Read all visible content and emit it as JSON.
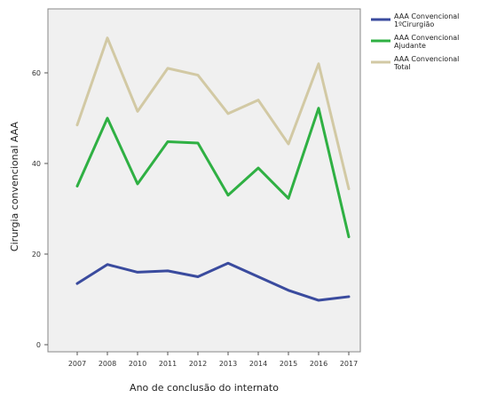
{
  "chart_data": {
    "type": "line",
    "x": [
      "2007",
      "2008",
      "2010",
      "2011",
      "2012",
      "2013",
      "2014",
      "2015",
      "2016",
      "2017"
    ],
    "xlabel": "Ano de conclusão do internato",
    "ylabel": "Cirurgia convencional AAA",
    "ylim": [
      0,
      70
    ],
    "yticks": [
      0,
      20,
      40,
      60
    ],
    "grid": false,
    "legend_position": "top-right-outside",
    "series": [
      {
        "name": "AAA Convencional 1ºCirurgião",
        "color": "#3a4b9e",
        "values": [
          13.5,
          17.7,
          16.0,
          16.3,
          15.0,
          18.0,
          15.0,
          12.0,
          9.8,
          10.6
        ]
      },
      {
        "name": "AAA Convencional Ajudante",
        "color": "#2fb043",
        "values": [
          35.0,
          50.0,
          35.5,
          44.8,
          44.5,
          33.0,
          39.0,
          32.3,
          52.2,
          23.8
        ]
      },
      {
        "name": "AAA Convencional Total",
        "color": "#d2c9a4",
        "values": [
          48.5,
          67.7,
          51.5,
          61.0,
          59.5,
          51.0,
          54.0,
          44.3,
          62.0,
          34.4
        ]
      }
    ]
  }
}
